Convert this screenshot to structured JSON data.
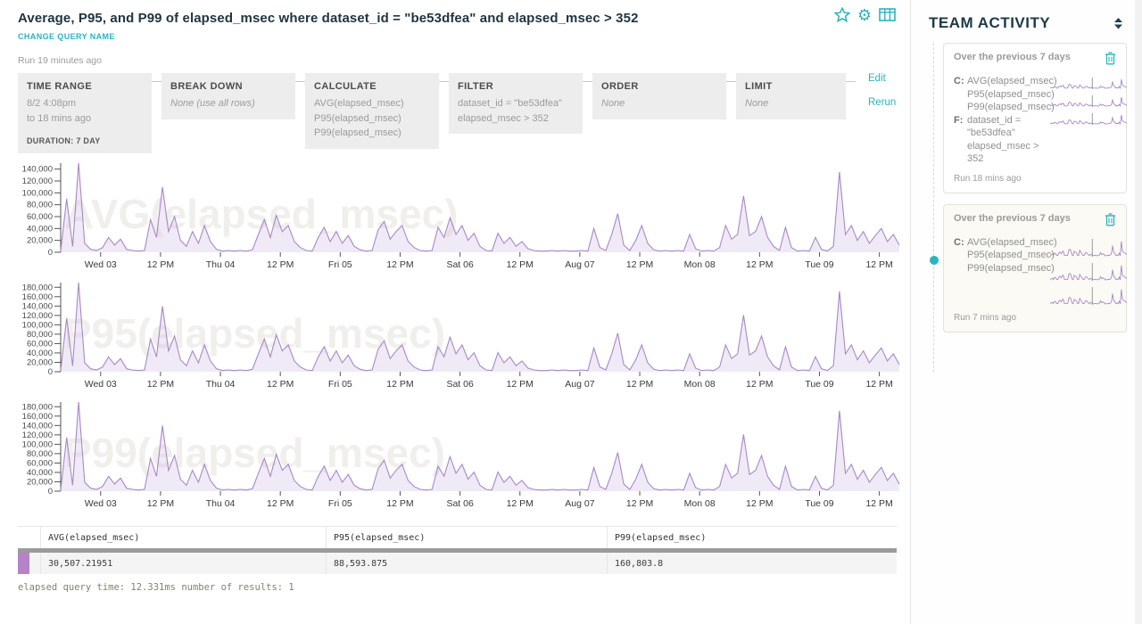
{
  "header": {
    "title": "Average, P95, and P99 of elapsed_msec where dataset_id = \"be53dfea\" and elapsed_msec > 352",
    "change_query_name": "CHANGE QUERY NAME",
    "run_caption": "Run 19 minutes ago",
    "icon_names": [
      "star-icon",
      "gear-icon",
      "table-icon"
    ]
  },
  "query_builder": {
    "edit_label": "Edit",
    "rerun_label": "Rerun",
    "boxes": [
      {
        "name": "TIME RANGE",
        "lines": [
          "8/2 4:08pm",
          "to 18 mins ago"
        ],
        "footer": "DURATION: 7 DAY",
        "italic": false
      },
      {
        "name": "BREAK DOWN",
        "lines": [
          "None (use all rows)"
        ],
        "italic": true
      },
      {
        "name": "CALCULATE",
        "lines": [
          "AVG(elapsed_msec)",
          "P95(elapsed_msec)",
          "P99(elapsed_msec)"
        ],
        "italic": false
      },
      {
        "name": "FILTER",
        "lines": [
          "dataset_id = \"be53dfea\"",
          "elapsed_msec > 352"
        ],
        "italic": false
      },
      {
        "name": "ORDER",
        "lines": [
          "None"
        ],
        "italic": true
      },
      {
        "name": "LIMIT",
        "lines": [
          "None"
        ],
        "italic": true
      }
    ]
  },
  "chart_data": {
    "type": "line",
    "unit": "msec",
    "x_range": "8/2 4:08pm to 18 mins ago (7 days)",
    "x_tick_labels": [
      "Wed 03",
      "12 PM",
      "Thu 04",
      "12 PM",
      "Fri 05",
      "12 PM",
      "Sat 06",
      "12 PM",
      "Aug 07",
      "12 PM",
      "Mon 08",
      "12 PM",
      "Tue 09",
      "12 PM"
    ],
    "base_values_thousands": [
      2,
      90,
      10,
      150,
      15,
      5,
      3,
      8,
      25,
      12,
      22,
      5,
      3,
      2,
      3,
      55,
      25,
      110,
      35,
      60,
      20,
      10,
      35,
      15,
      45,
      18,
      5,
      2,
      3,
      2,
      3,
      2,
      4,
      30,
      55,
      25,
      62,
      35,
      45,
      18,
      8,
      3,
      2,
      25,
      42,
      18,
      35,
      15,
      28,
      10,
      4,
      2,
      3,
      38,
      52,
      22,
      35,
      45,
      18,
      8,
      3,
      2,
      3,
      42,
      25,
      58,
      30,
      45,
      20,
      32,
      10,
      3,
      2,
      32,
      15,
      25,
      10,
      18,
      6,
      3,
      2,
      2,
      3,
      2,
      3,
      2,
      2,
      3,
      2,
      40,
      8,
      3,
      30,
      65,
      12,
      3,
      20,
      45,
      15,
      4,
      2,
      3,
      2,
      3,
      2,
      30,
      6,
      2,
      3,
      2,
      8,
      45,
      22,
      30,
      95,
      28,
      35,
      60,
      25,
      10,
      3,
      42,
      8,
      2,
      3,
      2,
      25,
      5,
      2,
      10,
      135,
      30,
      45,
      20,
      35,
      15,
      28,
      40,
      18,
      30,
      12
    ],
    "charts": [
      {
        "id": "avg-elapsed-msec",
        "name": "AVG(elapsed_msec)",
        "scale": 1.0,
        "ymax_thousands": 150,
        "yticks_thousands": [
          140,
          120,
          100,
          80,
          60,
          40,
          20,
          0
        ]
      },
      {
        "id": "p95-elapsed-msec",
        "name": "P95(elapsed_msec)",
        "scale": 1.27,
        "ymax_thousands": 190,
        "yticks_thousands": [
          180,
          160,
          140,
          120,
          100,
          80,
          60,
          40,
          20,
          0
        ]
      },
      {
        "id": "p99-elapsed-msec",
        "name": "P99(elapsed_msec)",
        "scale": 1.27,
        "ymax_thousands": 190,
        "yticks_thousands": [
          180,
          160,
          140,
          120,
          100,
          80,
          60,
          40,
          20,
          0
        ]
      }
    ]
  },
  "results_table": {
    "headers": [
      "AVG(elapsed_msec)",
      "P95(elapsed_msec)",
      "P99(elapsed_msec)"
    ],
    "rows": [
      {
        "swatch_color": "#b583c6",
        "values": [
          "30,507.21951",
          "88,593.875",
          "160,803.8"
        ]
      }
    ]
  },
  "footer_status": "elapsed query time: 12.331ms number of results: 1",
  "sidebar": {
    "title": "TEAM ACTIVITY",
    "cards": [
      {
        "title": "Over the previous 7 days",
        "calculate_label": "C:",
        "calculations": [
          "AVG(elapsed_msec)",
          "P95(elapsed_msec)",
          "P99(elapsed_msec)"
        ],
        "filter_label": "F:",
        "filters": [
          "dataset_id = \"be53dfea\"",
          "elapsed_msec > 352"
        ],
        "run_caption": "Run 18 mins ago",
        "active": false
      },
      {
        "title": "Over the previous 7 days",
        "calculate_label": "C:",
        "calculations": [
          "AVG(elapsed_msec)",
          "P95(elapsed_msec)",
          "P99(elapsed_msec)"
        ],
        "filter_label": "",
        "filters": [],
        "run_caption": "Run 7 mins ago",
        "active": true
      }
    ]
  },
  "colors": {
    "accent_teal": "#2bb3c0",
    "title_navy": "#1f3440",
    "purple_line": "#a888c8",
    "purple_fill": "#c9b2dd",
    "swatch_purple": "#b583c6",
    "watermark": "#f1efec",
    "axis_text": "#4a4a4a"
  }
}
